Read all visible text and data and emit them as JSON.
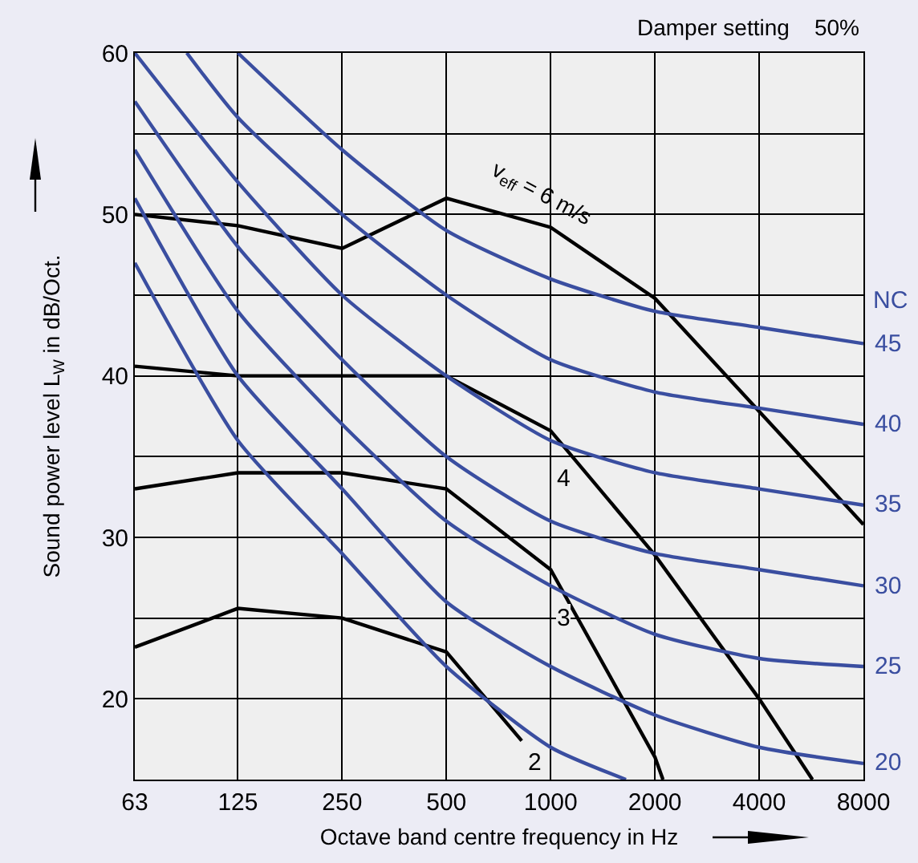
{
  "chart_data": {
    "type": "line",
    "xlabel": "Octave band centre frequency in Hz",
    "ylabel": "Sound power level L$_{W}$ in dB/Oct.",
    "annotations": [
      "Damper setting    50%",
      "NC"
    ],
    "log": "x",
    "xlim": [
      63,
      8000
    ],
    "xticks": [
      63,
      125,
      250,
      500,
      1000,
      2000,
      4000,
      8000
    ],
    "ylim": [
      15,
      60
    ],
    "yticks": [
      {
        "value": 15,
        "label": null
      },
      20,
      {
        "value": 25,
        "label": null
      },
      30,
      {
        "value": 35,
        "label": null
      },
      40,
      {
        "value": 45,
        "label": null
      },
      50,
      {
        "value": 55,
        "label": null
      },
      60
    ],
    "grid": true,
    "legend": false,
    "marker": "none",
    "line_style": "solid",
    "series": [
      {
        "name": "v$_{eff}$ = 6 m/s",
        "color": "#000000",
        "x": [
          63,
          125,
          250,
          500,
          1000,
          2000,
          4000,
          8000
        ],
        "values": [
          50,
          49.3,
          47.9,
          51,
          49.2,
          44.8,
          37.8,
          30.8
        ]
      },
      {
        "name": "4",
        "color": "#000000",
        "x": [
          63,
          125,
          250,
          500,
          1000,
          2000,
          4000,
          5700
        ],
        "values": [
          40.6,
          40,
          40,
          40,
          36.6,
          28.9,
          20,
          15
        ]
      },
      {
        "name": "3",
        "color": "#000000",
        "x": [
          63,
          125,
          250,
          500,
          1000,
          2000,
          2110
        ],
        "values": [
          33,
          34,
          34,
          33,
          28,
          16.4,
          15
        ]
      },
      {
        "name": "2",
        "color": "#000000",
        "x": [
          63,
          125,
          250,
          500,
          825
        ],
        "values": [
          23.2,
          25.6,
          25,
          22.9,
          17.4
        ]
      },
      {
        "color": "#3a4ea0",
        "x": [
          63,
          125,
          250,
          500,
          1000,
          1650
        ],
        "values": [
          47,
          36,
          29,
          22,
          17,
          15
        ]
      },
      {
        "name": "20",
        "color": "#3a4ea0",
        "x": [
          63,
          125,
          250,
          500,
          1000,
          2000,
          4000,
          8000
        ],
        "values": [
          51,
          40,
          33,
          26,
          22,
          19,
          17,
          16
        ]
      },
      {
        "name": "25",
        "color": "#3a4ea0",
        "x": [
          63,
          125,
          250,
          500,
          1000,
          2000,
          4000,
          8000
        ],
        "values": [
          54,
          44,
          37,
          31,
          27,
          24,
          22.5,
          22
        ]
      },
      {
        "name": "30",
        "color": "#3a4ea0",
        "x": [
          63,
          125,
          250,
          500,
          1000,
          2000,
          4000,
          8000
        ],
        "values": [
          57,
          48,
          41,
          35,
          31,
          29,
          28,
          27
        ]
      },
      {
        "name": "35",
        "color": "#3a4ea0",
        "x": [
          63,
          125,
          250,
          500,
          1000,
          2000,
          4000,
          8000
        ],
        "values": [
          60,
          52,
          45,
          40,
          36,
          34,
          33,
          32
        ]
      },
      {
        "name": "40",
        "color": "#3a4ea0",
        "x": [
          89,
          125,
          250,
          500,
          1000,
          2000,
          4000,
          8000
        ],
        "values": [
          60,
          56,
          50,
          45,
          41,
          39,
          38,
          37
        ]
      },
      {
        "name": "45",
        "color": "#3a4ea0",
        "x": [
          125,
          250,
          500,
          1000,
          2000,
          4000,
          8000
        ],
        "values": [
          60,
          54,
          49,
          46,
          44,
          43,
          42
        ]
      }
    ]
  }
}
